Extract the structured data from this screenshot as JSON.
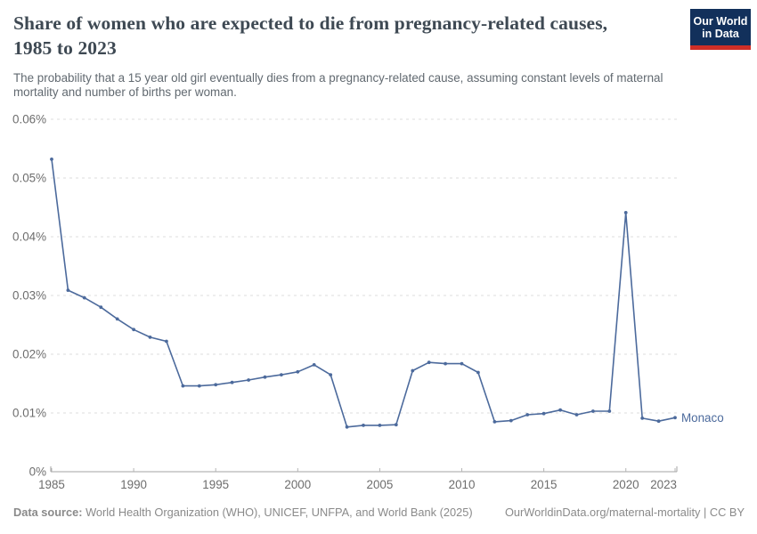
{
  "header": {
    "title": "Share of women who are expected to die from pregnancy-related causes, 1985 to 2023",
    "subtitle": "The probability that a 15 year old girl eventually dies from a pregnancy-related cause, assuming constant levels of maternal mortality and number of births per woman.",
    "logo": {
      "line1": "Our World",
      "line2": "in Data",
      "bg_color": "#12305b",
      "accent_color": "#cf2e27"
    }
  },
  "chart_data": {
    "type": "line",
    "title": "Share of women who are expected to die from pregnancy-related causes, 1985 to 2023",
    "xlabel": "",
    "ylabel": "",
    "xlim": [
      1985,
      2023
    ],
    "ylim": [
      0,
      0.06
    ],
    "grid": "horizontal-dashed",
    "legend_position": "end-of-line",
    "x": [
      1985,
      1986,
      1987,
      1988,
      1989,
      1990,
      1991,
      1992,
      1993,
      1994,
      1995,
      1996,
      1997,
      1998,
      1999,
      2000,
      2001,
      2002,
      2003,
      2004,
      2005,
      2006,
      2007,
      2008,
      2009,
      2010,
      2011,
      2012,
      2013,
      2014,
      2015,
      2016,
      2017,
      2018,
      2019,
      2020,
      2021,
      2022,
      2023
    ],
    "series": [
      {
        "name": "Monaco",
        "color": "#4c6a9c",
        "unit": "%",
        "values": [
          0.0532,
          0.0309,
          0.0296,
          0.028,
          0.026,
          0.0242,
          0.0229,
          0.0222,
          0.0146,
          0.0146,
          0.0148,
          0.0152,
          0.0156,
          0.0161,
          0.0165,
          0.017,
          0.0182,
          0.0165,
          0.0076,
          0.0079,
          0.0079,
          0.008,
          0.0172,
          0.0186,
          0.0184,
          0.0184,
          0.0169,
          0.0085,
          0.0087,
          0.0097,
          0.0099,
          0.0105,
          0.0097,
          0.0103,
          0.0103,
          0.0441,
          0.0091,
          0.0086,
          0.0092
        ]
      }
    ],
    "x_ticks": [
      1985,
      1990,
      1995,
      2000,
      2005,
      2010,
      2015,
      2020,
      2023
    ],
    "y_ticks": [
      {
        "value": 0,
        "label": "0%"
      },
      {
        "value": 0.01,
        "label": "0.01%"
      },
      {
        "value": 0.02,
        "label": "0.02%"
      },
      {
        "value": 0.03,
        "label": "0.03%"
      },
      {
        "value": 0.04,
        "label": "0.04%"
      },
      {
        "value": 0.05,
        "label": "0.05%"
      },
      {
        "value": 0.06,
        "label": "0.06%"
      }
    ]
  },
  "footer": {
    "source_label": "Data source:",
    "source_text": " World Health Organization (WHO), UNICEF, UNFPA, and World Bank (2025)",
    "link_text": "OurWorldinData.org/maternal-mortality | CC BY"
  }
}
